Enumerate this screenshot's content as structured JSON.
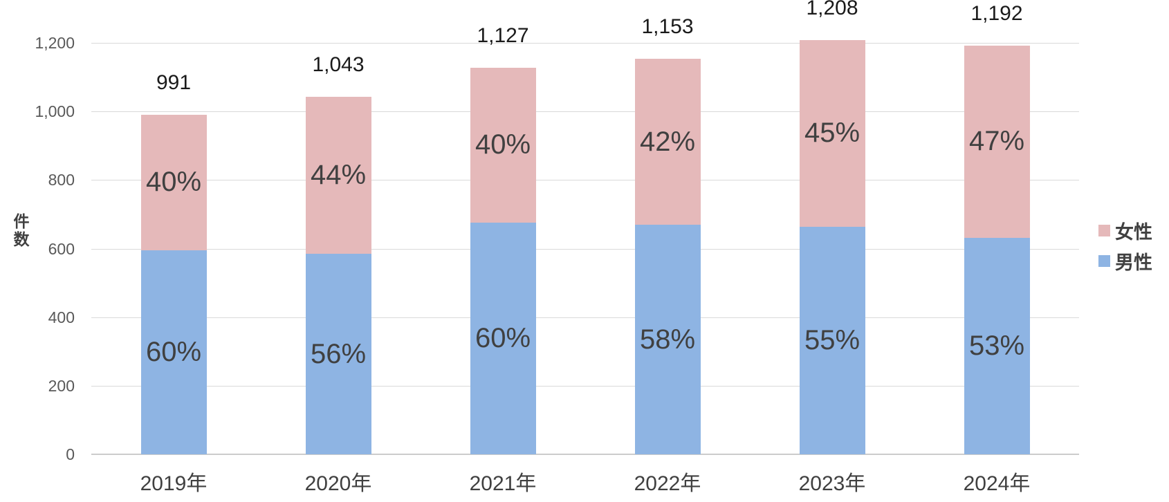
{
  "chart_data": {
    "type": "bar",
    "subtype": "stacked-column",
    "title": "",
    "ylabel": "件数",
    "xlabel": "",
    "categories": [
      "2019年",
      "2020年",
      "2021年",
      "2022年",
      "2023年",
      "2024年"
    ],
    "totals": [
      991,
      1043,
      1127,
      1153,
      1208,
      1192
    ],
    "total_labels": [
      "991",
      "1,043",
      "1,127",
      "1,153",
      "1,208",
      "1,192"
    ],
    "series": [
      {
        "name": "男性",
        "color": "#8eb4e3",
        "pct": [
          60,
          56,
          60,
          58,
          55,
          53
        ],
        "pct_labels": [
          "60%",
          "56%",
          "60%",
          "58%",
          "55%",
          "53%"
        ]
      },
      {
        "name": "女性",
        "color": "#e5b9ba",
        "pct": [
          40,
          44,
          40,
          42,
          45,
          47
        ],
        "pct_labels": [
          "40%",
          "44%",
          "40%",
          "42%",
          "45%",
          "47%"
        ]
      }
    ],
    "ylim": [
      0,
      1200
    ],
    "y_ticks": [
      {
        "value": 0,
        "label": "0"
      },
      {
        "value": 200,
        "label": "200"
      },
      {
        "value": 400,
        "label": "400"
      },
      {
        "value": 600,
        "label": "600"
      },
      {
        "value": 800,
        "label": "800"
      },
      {
        "value": 1000,
        "label": "1,000"
      },
      {
        "value": 1200,
        "label": "1,200"
      }
    ],
    "grid": true,
    "legend_position": "right",
    "legend": [
      {
        "label": "女性",
        "color": "#e5b9ba"
      },
      {
        "label": "男性",
        "color": "#8eb4e3"
      }
    ],
    "colors": {
      "gridline": "#d9d9d9",
      "axis_line": "#cccccc",
      "tick_text": "#595959",
      "label_text": "#404040",
      "total_text": "#1a1a1a"
    }
  }
}
